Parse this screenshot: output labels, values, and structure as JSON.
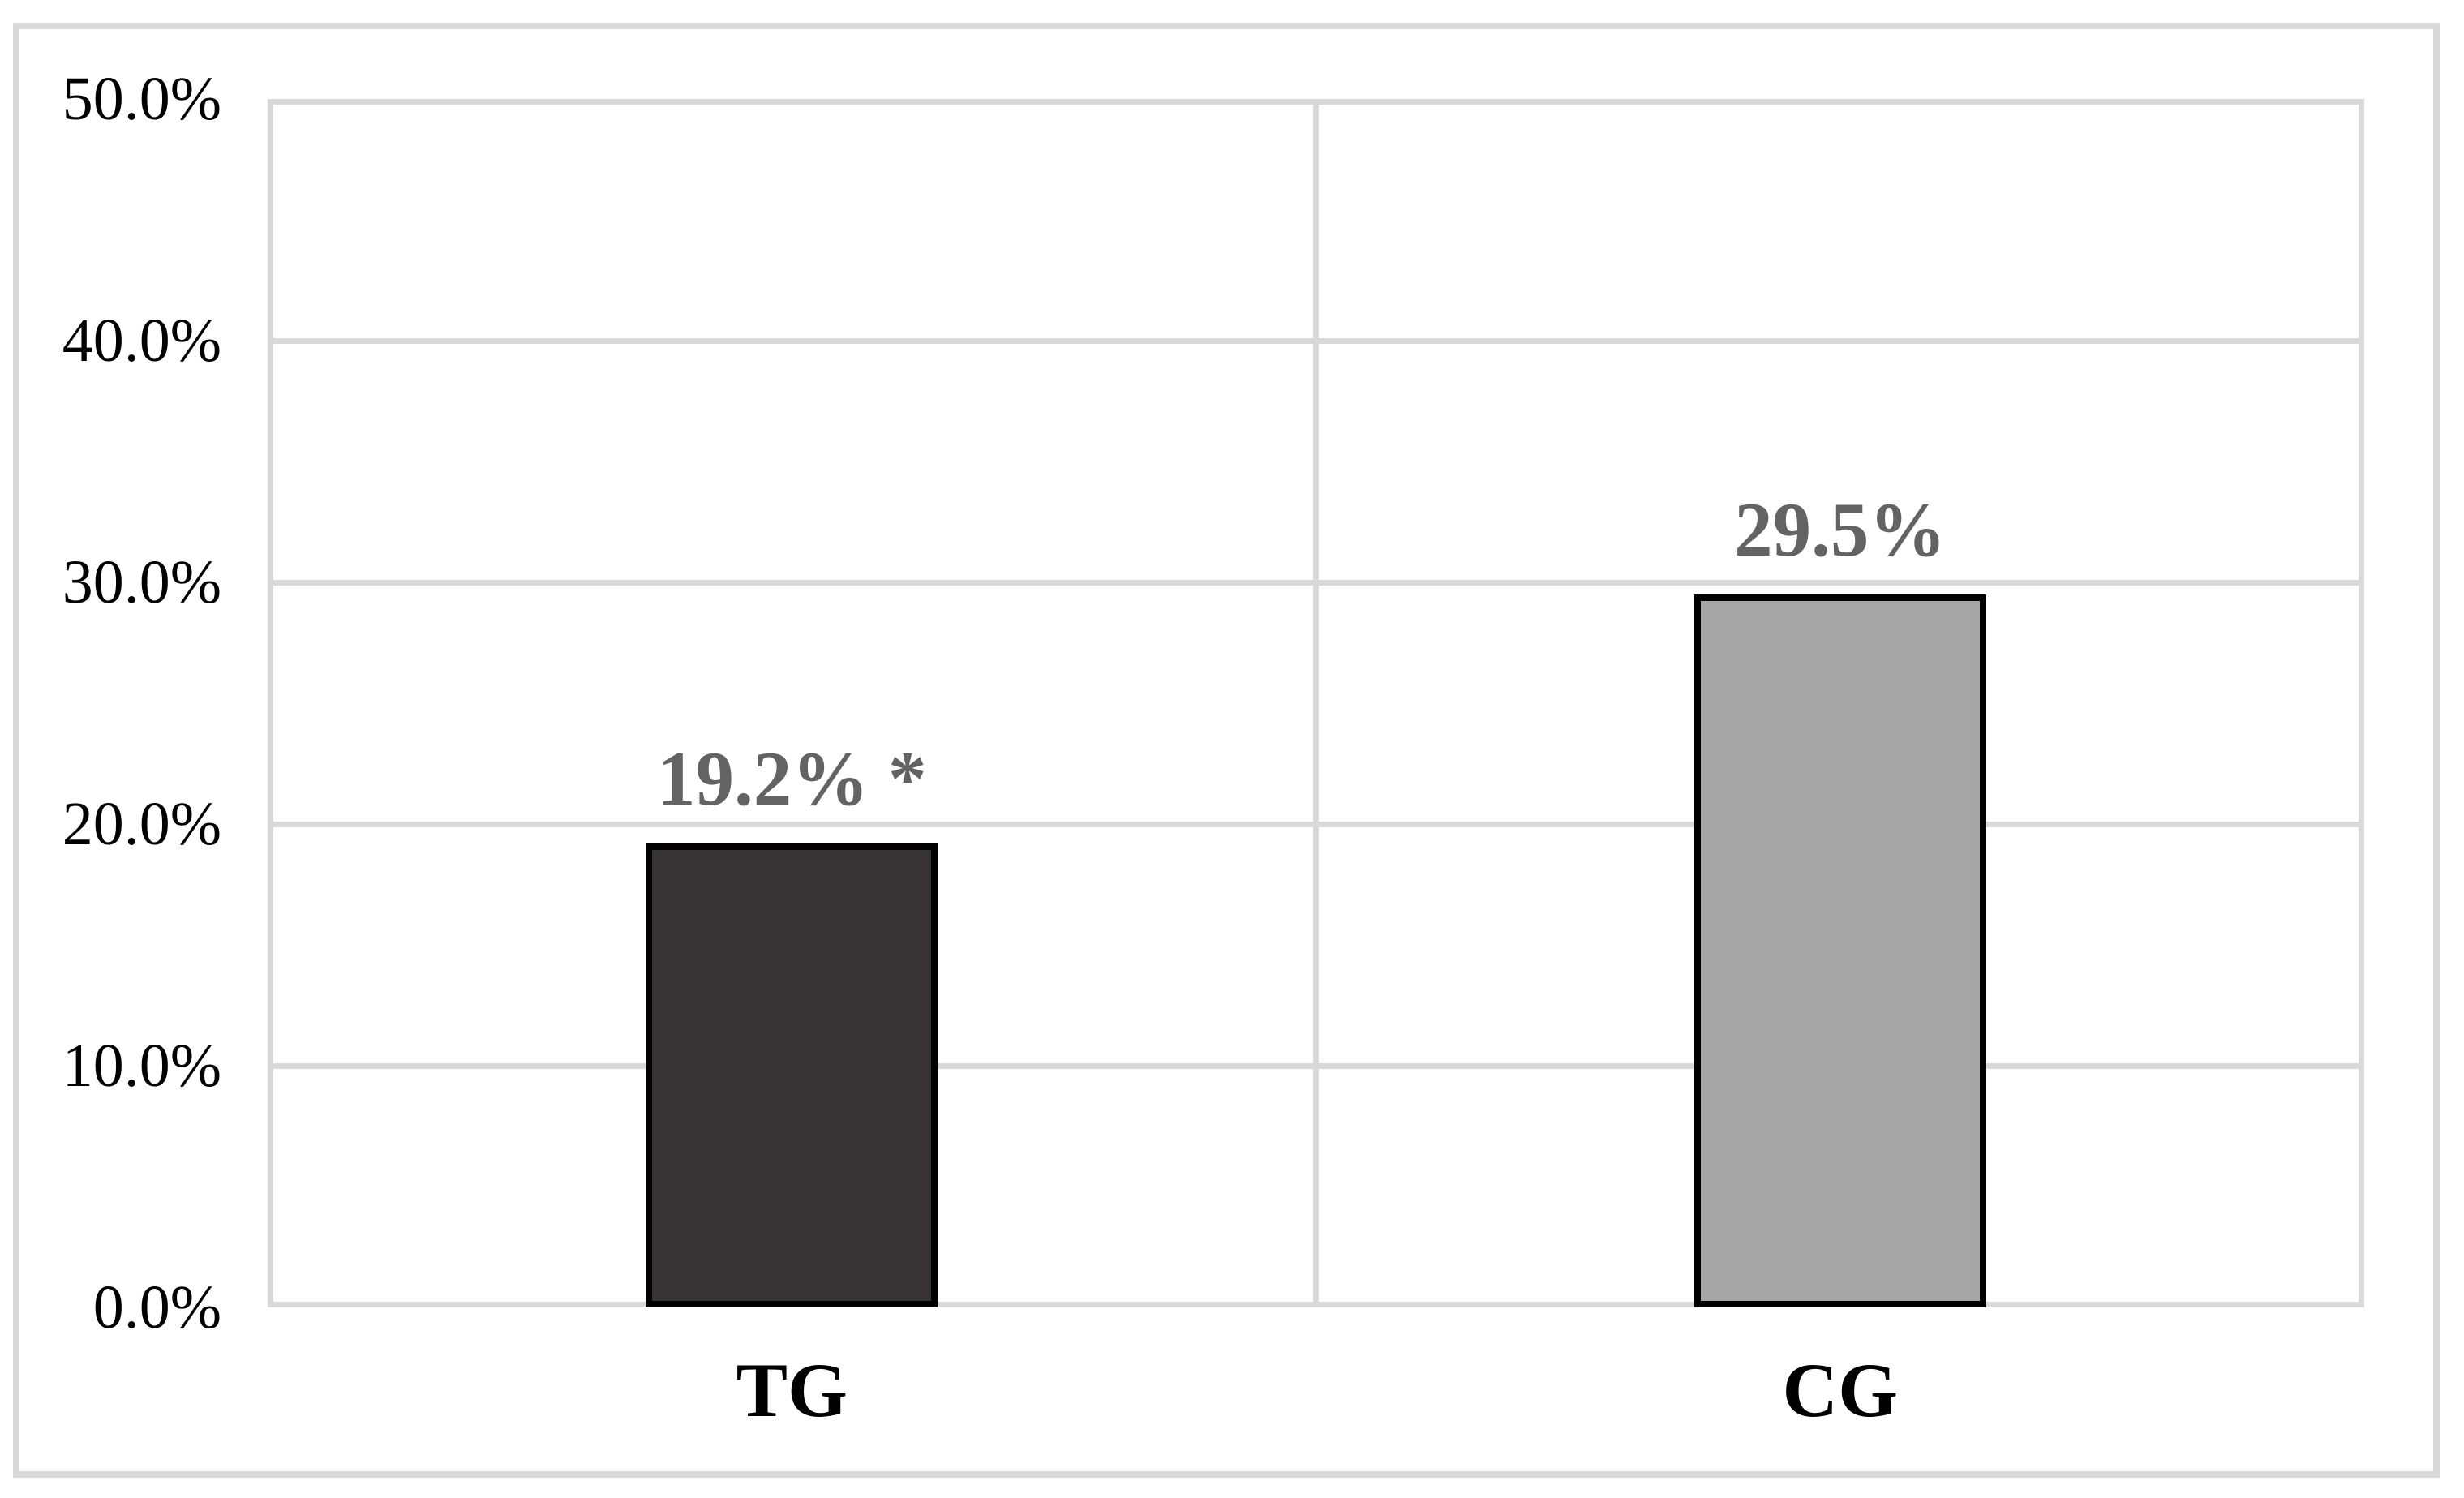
{
  "figure": {
    "background": "#ffffff",
    "outer_border_color": "#d9d9d9"
  },
  "chart_data": {
    "type": "bar",
    "title": "",
    "xlabel": "",
    "ylabel": "",
    "legend": "none",
    "grid": true,
    "categories": [
      "TG",
      "CG"
    ],
    "values": [
      19.2,
      29.5
    ],
    "data_labels": [
      "19.2% *",
      "29.5%"
    ],
    "bar_colors": [
      "#383334",
      "#a6a6a6"
    ],
    "bar_border_color": "#000000",
    "data_label_color": "#636363",
    "axis_text_color": "#000000",
    "gridline_color": "#d9d9d9",
    "ylim": [
      0,
      50
    ],
    "ytick_step": 10,
    "yticks": [
      {
        "value": 50,
        "label": "50.0%"
      },
      {
        "value": 40,
        "label": "40.0%"
      },
      {
        "value": 30,
        "label": "30.0%"
      },
      {
        "value": 20,
        "label": "20.0%"
      },
      {
        "value": 10,
        "label": "10.0%"
      },
      {
        "value": 0,
        "label": "0.0%"
      }
    ]
  }
}
